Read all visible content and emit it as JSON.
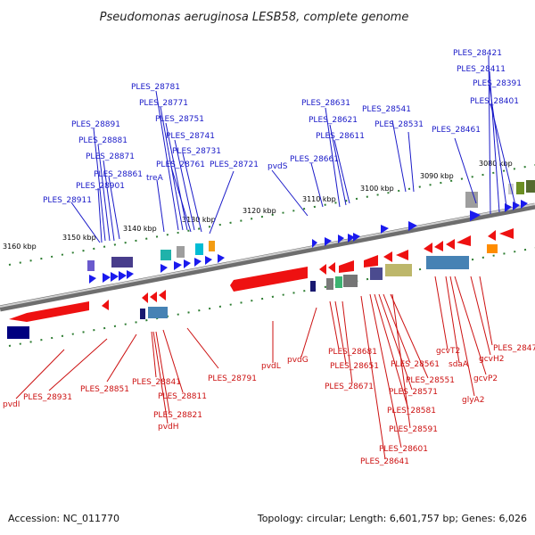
{
  "title": "Pseudomonas aeruginosa LESB58, complete genome",
  "footer": {
    "accession": "Accession: NC_011770",
    "summary": "Topology: circular; Length: 6,601,757 bp; Genes: 6,026"
  },
  "colors": {
    "forward_label": "#1a1ac8",
    "reverse_label": "#cc1111",
    "forward_gene": "#1a1aee",
    "reverse_gene": "#ee1111",
    "backbone": "#8a8a8a",
    "tick": "#2e7d32"
  },
  "ticks": [
    "3160 kbp",
    "3150 kbp",
    "3140 kbp",
    "3130 kbp",
    "3120 kbp",
    "3110 kbp",
    "3100 kbp",
    "3090 kbp",
    "3080 kbp"
  ],
  "labels_forward": [
    "PLES_28421",
    "PLES_28411",
    "PLES_28391",
    "PLES_28401",
    "PLES_28461",
    "PLES_28541",
    "PLES_28531",
    "PLES_28631",
    "PLES_28621",
    "PLES_28611",
    "PLES_28661",
    "pvdS",
    "PLES_28781",
    "PLES_28771",
    "PLES_28751",
    "PLES_28741",
    "PLES_28731",
    "PLES_28761",
    "PLES_28721",
    "treA",
    "PLES_28891",
    "PLES_28881",
    "PLES_28871",
    "PLES_28861",
    "PLES_28901",
    "PLES_28911"
  ],
  "labels_reverse": [
    "pvdI",
    "PLES_28931",
    "PLES_28851",
    "PLES_28841",
    "PLES_28811",
    "PLES_28821",
    "pvdH",
    "PLES_28791",
    "pvdL",
    "pvdG",
    "PLES_28681",
    "PLES_28651",
    "PLES_28671",
    "PLES_28561",
    "PLES_28551",
    "PLES_28571",
    "PLES_28581",
    "PLES_28591",
    "PLES_28601",
    "PLES_28641",
    "gcvT2",
    "sdaA",
    "gcvP2",
    "glyA2",
    "gcvH2",
    "PLES_28471"
  ]
}
